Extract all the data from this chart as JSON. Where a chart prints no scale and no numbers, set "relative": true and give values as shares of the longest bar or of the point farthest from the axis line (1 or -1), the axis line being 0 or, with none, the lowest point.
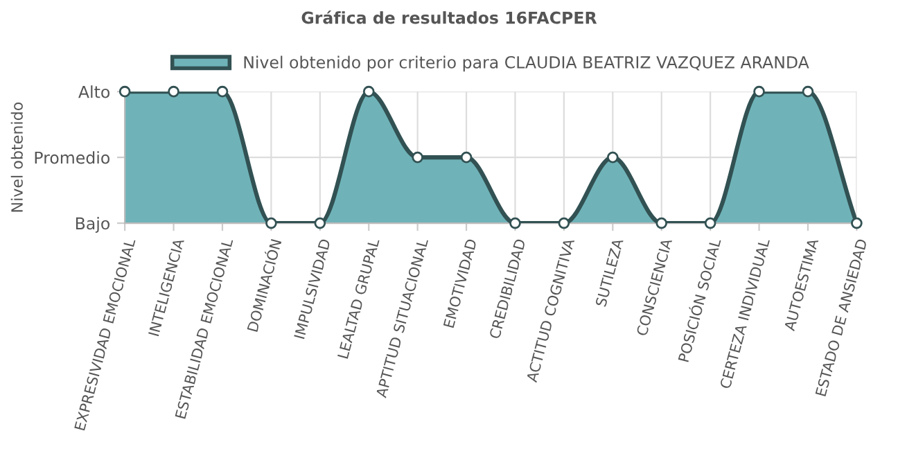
{
  "chart_data": {
    "type": "area",
    "title": "Gráfica de resultados 16FACPER",
    "ylabel": "Nivel obtenido",
    "categories": [
      "EXPRESIVIDAD EMOCIONAL",
      "INTELIGENCIA",
      "ESTABILIDAD EMOCIONAL",
      "DOMINACIÓN",
      "IMPULSIVIDAD",
      "LEALTAD GRUPAL",
      "APTITUD SITUACIONAL",
      "EMOTIVIDAD",
      "CREDIBILIDAD",
      "ACTITUD COGNITIVA",
      "SUTILEZA",
      "CONSCIENCIA",
      "POSICIÓN SOCIAL",
      "CERTEZA INDIVIDUAL",
      "AUTOESTIMA",
      "ESTADO DE ANSIEDAD"
    ],
    "series": [
      {
        "name": "Nivel obtenido por criterio para CLAUDIA BEATRIZ VAZQUEZ ARANDA",
        "color": "#6fb3b8",
        "values": [
          1,
          1,
          1,
          0,
          0,
          1,
          0.5,
          0.5,
          0,
          0,
          0.5,
          0,
          0,
          1,
          1,
          0
        ]
      }
    ],
    "relative": true,
    "annotations": [
      "Bajo",
      "Promedio",
      "Alto"
    ],
    "grid": true,
    "legend": "top",
    "marker": "circle"
  }
}
